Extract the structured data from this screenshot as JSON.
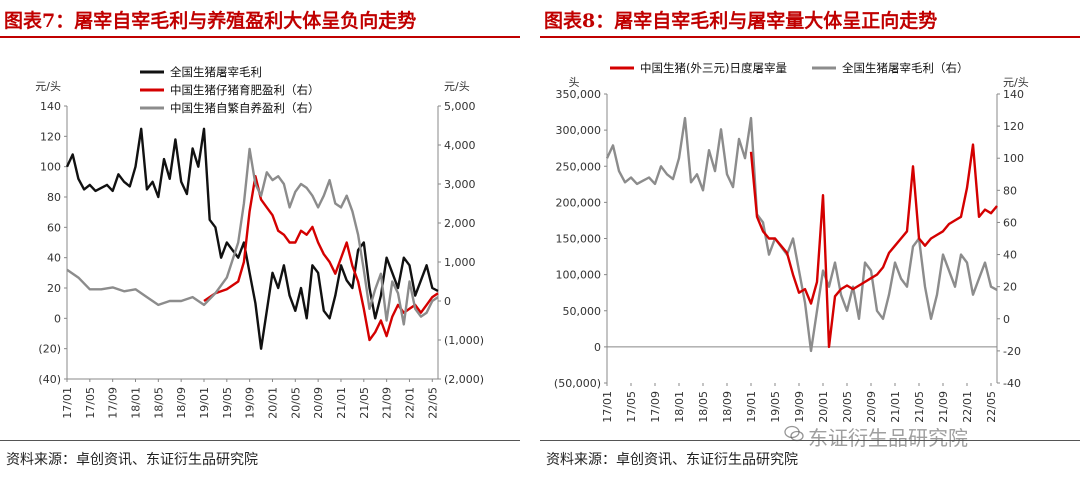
{
  "colors": {
    "black": "#111111",
    "red": "#d40000",
    "gray": "#8c8c8c",
    "title": "#c00000"
  },
  "watermark": {
    "text": "东证衍生品研究院",
    "icon": "wechat-icon"
  },
  "charts": [
    {
      "id": "left",
      "title": "图表7：屠宰自宰毛利与养殖盈利大体呈负向走势",
      "source": "资料来源：卓创资讯、东证衍生品研究院",
      "left_unit": "元/头",
      "right_unit": "元/头",
      "left_ticks": [
        "140",
        "120",
        "100",
        "80",
        "60",
        "40",
        "20",
        "0",
        "(20)",
        "(40)"
      ],
      "right_ticks": [
        "5,000",
        "4,000",
        "3,000",
        "2,000",
        "1,000",
        "0",
        "(1,000)",
        "(2,000)"
      ],
      "x_ticks": [
        "17/01",
        "17/05",
        "17/09",
        "18/01",
        "18/05",
        "18/09",
        "19/01",
        "19/05",
        "19/09",
        "20/01",
        "20/05",
        "20/09",
        "21/01",
        "21/05",
        "21/09",
        "22/01",
        "22/05"
      ],
      "legend": [
        "全国生猪屠宰毛利",
        "中国生猪仔猪育肥盈利（右）",
        "中国生猪自繁自养盈利（右）"
      ]
    },
    {
      "id": "right",
      "title": "图表8：屠宰自宰毛利与屠宰量大体呈正向走势",
      "source": "资料来源：卓创资讯、东证衍生品研究院",
      "left_unit": "头",
      "right_unit": "元/头",
      "left_ticks": [
        "350,000",
        "300,000",
        "250,000",
        "200,000",
        "150,000",
        "100,000",
        "50,000",
        "0",
        "(50,000)"
      ],
      "right_ticks": [
        "140",
        "120",
        "100",
        "80",
        "60",
        "40",
        "20",
        "0",
        "-20",
        "-40"
      ],
      "x_ticks": [
        "17/01",
        "17/05",
        "17/09",
        "18/01",
        "18/05",
        "18/09",
        "19/01",
        "19/05",
        "19/09",
        "20/01",
        "20/05",
        "20/09",
        "21/01",
        "21/05",
        "21/09",
        "22/01",
        "22/05"
      ],
      "legend": [
        "中国生猪(外三元)日度屠宰量",
        "全国生猪屠宰毛利（右）"
      ]
    }
  ],
  "chart_data": [
    {
      "type": "line",
      "x_start": "2017-01",
      "x_end": "2022-06",
      "ylim_left": [
        -40,
        140
      ],
      "ylim_right": [
        -2000,
        5000
      ],
      "series": [
        {
          "name": "全国生猪屠宰毛利",
          "axis": "left",
          "color": "#111111",
          "x": [
            "2017-01",
            "2017-02",
            "2017-03",
            "2017-04",
            "2017-05",
            "2017-06",
            "2017-07",
            "2017-08",
            "2017-09",
            "2017-10",
            "2017-11",
            "2017-12",
            "2018-01",
            "2018-02",
            "2018-03",
            "2018-04",
            "2018-05",
            "2018-06",
            "2018-07",
            "2018-08",
            "2018-09",
            "2018-10",
            "2018-11",
            "2018-12",
            "2019-01",
            "2019-02",
            "2019-03",
            "2019-04",
            "2019-05",
            "2019-06",
            "2019-07",
            "2019-08",
            "2019-09",
            "2019-10",
            "2019-11",
            "2019-12",
            "2020-01",
            "2020-02",
            "2020-03",
            "2020-04",
            "2020-05",
            "2020-06",
            "2020-07",
            "2020-08",
            "2020-09",
            "2020-10",
            "2020-11",
            "2020-12",
            "2021-01",
            "2021-02",
            "2021-03",
            "2021-04",
            "2021-05",
            "2021-06",
            "2021-07",
            "2021-08",
            "2021-09",
            "2021-10",
            "2021-11",
            "2021-12",
            "2022-01",
            "2022-02",
            "2022-03",
            "2022-04",
            "2022-05",
            "2022-06"
          ],
          "values": [
            100,
            108,
            92,
            85,
            88,
            84,
            86,
            88,
            84,
            95,
            90,
            87,
            100,
            125,
            85,
            90,
            80,
            105,
            92,
            118,
            90,
            82,
            112,
            100,
            125,
            65,
            60,
            40,
            50,
            45,
            40,
            50,
            30,
            10,
            -20,
            5,
            30,
            20,
            35,
            15,
            5,
            20,
            0,
            35,
            30,
            5,
            0,
            15,
            35,
            25,
            20,
            45,
            50,
            20,
            0,
            15,
            40,
            30,
            20,
            40,
            35,
            15,
            25,
            35,
            20,
            18
          ]
        },
        {
          "name": "中国生猪仔猪育肥盈利（右）",
          "axis": "right",
          "color": "#d40000",
          "x": [
            "2019-01",
            "2019-03",
            "2019-05",
            "2019-07",
            "2019-08",
            "2019-09",
            "2019-10",
            "2019-11",
            "2019-12",
            "2020-01",
            "2020-02",
            "2020-03",
            "2020-04",
            "2020-05",
            "2020-06",
            "2020-07",
            "2020-08",
            "2020-09",
            "2020-10",
            "2020-11",
            "2020-12",
            "2021-01",
            "2021-02",
            "2021-03",
            "2021-04",
            "2021-05",
            "2021-06",
            "2021-07",
            "2021-08",
            "2021-09",
            "2021-10",
            "2021-11",
            "2021-12",
            "2022-01",
            "2022-02",
            "2022-03",
            "2022-04",
            "2022-05",
            "2022-06"
          ],
          "values": [
            0,
            200,
            300,
            500,
            1000,
            2300,
            3200,
            2600,
            2400,
            2200,
            1800,
            1700,
            1500,
            1500,
            1800,
            1700,
            1900,
            1500,
            1200,
            1000,
            700,
            1100,
            1500,
            900,
            500,
            -200,
            -1000,
            -800,
            -500,
            -900,
            -400,
            -100,
            -300,
            -200,
            -100,
            -300,
            -100,
            100,
            200
          ]
        },
        {
          "name": "中国生猪自繁自养盈利（右）",
          "axis": "right",
          "color": "#8c8c8c",
          "x": [
            "2017-01",
            "2017-03",
            "2017-05",
            "2017-07",
            "2017-09",
            "2017-11",
            "2018-01",
            "2018-03",
            "2018-05",
            "2018-07",
            "2018-09",
            "2018-11",
            "2019-01",
            "2019-03",
            "2019-05",
            "2019-07",
            "2019-08",
            "2019-09",
            "2019-10",
            "2019-11",
            "2019-12",
            "2020-01",
            "2020-02",
            "2020-03",
            "2020-04",
            "2020-05",
            "2020-06",
            "2020-07",
            "2020-08",
            "2020-09",
            "2020-10",
            "2020-11",
            "2020-12",
            "2021-01",
            "2021-02",
            "2021-03",
            "2021-04",
            "2021-05",
            "2021-06",
            "2021-07",
            "2021-08",
            "2021-09",
            "2021-10",
            "2021-11",
            "2021-12",
            "2022-01",
            "2022-02",
            "2022-03",
            "2022-04",
            "2022-05",
            "2022-06"
          ],
          "values": [
            800,
            600,
            300,
            300,
            350,
            250,
            300,
            100,
            -100,
            0,
            0,
            100,
            -100,
            200,
            600,
            1500,
            2500,
            3900,
            3000,
            2700,
            3300,
            3100,
            3200,
            3000,
            2400,
            2800,
            3000,
            2900,
            2700,
            2400,
            2700,
            3100,
            2500,
            2400,
            2700,
            2300,
            1700,
            800,
            -200,
            300,
            700,
            -500,
            500,
            200,
            -600,
            500,
            -200,
            -400,
            -300,
            0,
            100
          ]
        }
      ]
    },
    {
      "type": "line",
      "x_start": "2017-01",
      "x_end": "2022-06",
      "ylim_left": [
        -50000,
        350000
      ],
      "ylim_right": [
        -40,
        140
      ],
      "series": [
        {
          "name": "中国生猪(外三元)日度屠宰量",
          "axis": "left",
          "color": "#d40000",
          "x": [
            "2019-01",
            "2019-02",
            "2019-03",
            "2019-04",
            "2019-05",
            "2019-06",
            "2019-07",
            "2019-08",
            "2019-09",
            "2019-10",
            "2019-11",
            "2019-12",
            "2020-01",
            "2020-02",
            "2020-03",
            "2020-04",
            "2020-05",
            "2020-06",
            "2020-07",
            "2020-08",
            "2020-09",
            "2020-10",
            "2020-11",
            "2020-12",
            "2021-01",
            "2021-02",
            "2021-03",
            "2021-04",
            "2021-05",
            "2021-06",
            "2021-07",
            "2021-08",
            "2021-09",
            "2021-10",
            "2021-11",
            "2021-12",
            "2022-01",
            "2022-02",
            "2022-03",
            "2022-04",
            "2022-05",
            "2022-06"
          ],
          "values": [
            270000,
            180000,
            160000,
            150000,
            150000,
            140000,
            130000,
            100000,
            75000,
            80000,
            60000,
            90000,
            210000,
            0,
            70000,
            80000,
            85000,
            80000,
            85000,
            90000,
            95000,
            100000,
            110000,
            130000,
            140000,
            150000,
            160000,
            250000,
            150000,
            140000,
            150000,
            155000,
            160000,
            170000,
            175000,
            180000,
            220000,
            280000,
            180000,
            190000,
            185000,
            195000
          ]
        },
        {
          "name": "全国生猪屠宰毛利（右）",
          "axis": "right",
          "color": "#8c8c8c",
          "x": [
            "2017-01",
            "2017-02",
            "2017-03",
            "2017-04",
            "2017-05",
            "2017-06",
            "2017-07",
            "2017-08",
            "2017-09",
            "2017-10",
            "2017-11",
            "2017-12",
            "2018-01",
            "2018-02",
            "2018-03",
            "2018-04",
            "2018-05",
            "2018-06",
            "2018-07",
            "2018-08",
            "2018-09",
            "2018-10",
            "2018-11",
            "2018-12",
            "2019-01",
            "2019-02",
            "2019-03",
            "2019-04",
            "2019-05",
            "2019-06",
            "2019-07",
            "2019-08",
            "2019-09",
            "2019-10",
            "2019-11",
            "2019-12",
            "2020-01",
            "2020-02",
            "2020-03",
            "2020-04",
            "2020-05",
            "2020-06",
            "2020-07",
            "2020-08",
            "2020-09",
            "2020-10",
            "2020-11",
            "2020-12",
            "2021-01",
            "2021-02",
            "2021-03",
            "2021-04",
            "2021-05",
            "2021-06",
            "2021-07",
            "2021-08",
            "2021-09",
            "2021-10",
            "2021-11",
            "2021-12",
            "2022-01",
            "2022-02",
            "2022-03",
            "2022-04",
            "2022-05",
            "2022-06"
          ],
          "values": [
            100,
            108,
            92,
            85,
            88,
            84,
            86,
            88,
            84,
            95,
            90,
            87,
            100,
            125,
            85,
            90,
            80,
            105,
            92,
            118,
            90,
            82,
            112,
            100,
            125,
            65,
            60,
            40,
            50,
            45,
            40,
            50,
            30,
            10,
            -20,
            5,
            30,
            20,
            35,
            15,
            5,
            20,
            0,
            35,
            30,
            5,
            0,
            15,
            35,
            25,
            20,
            45,
            50,
            20,
            0,
            15,
            40,
            30,
            20,
            40,
            35,
            15,
            25,
            35,
            20,
            18
          ]
        }
      ]
    }
  ]
}
